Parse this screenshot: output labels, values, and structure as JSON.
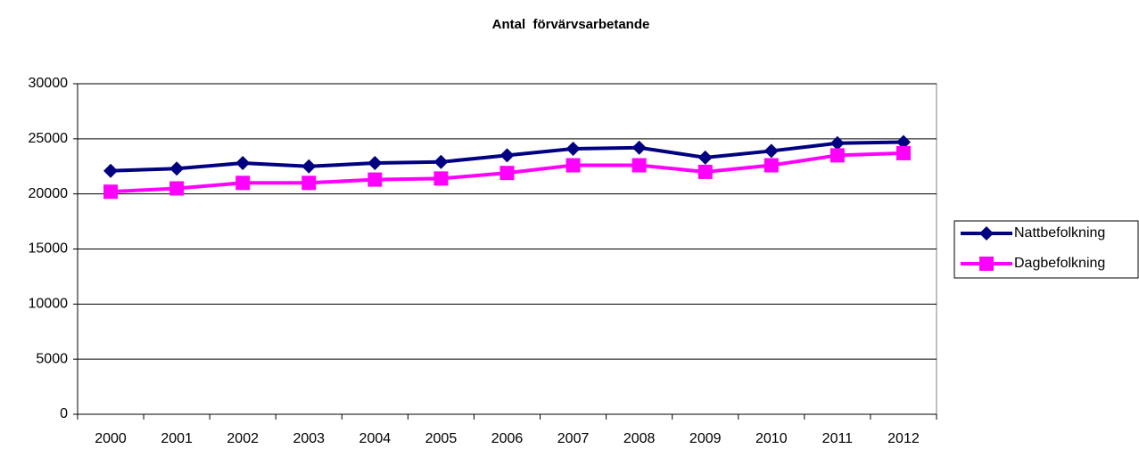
{
  "chart_data": {
    "type": "line",
    "title": "Antal  förvärvsarbetande",
    "categories": [
      "2000",
      "2001",
      "2002",
      "2003",
      "2004",
      "2005",
      "2006",
      "2007",
      "2008",
      "2009",
      "2010",
      "2011",
      "2012"
    ],
    "series": [
      {
        "name": "Nattbefolkning",
        "color": "#000080",
        "marker": "diamond",
        "values": [
          22100,
          22300,
          22800,
          22500,
          22800,
          22900,
          23500,
          24100,
          24200,
          23300,
          23900,
          24600,
          24700
        ]
      },
      {
        "name": "Dagbefolkning",
        "color": "#ff00ff",
        "marker": "square",
        "values": [
          20200,
          20500,
          21000,
          21000,
          21300,
          21400,
          21900,
          22600,
          22600,
          22000,
          22600,
          23500,
          23700
        ]
      }
    ],
    "ylim": [
      0,
      30000
    ],
    "yticks": [
      0,
      5000,
      10000,
      15000,
      20000,
      25000,
      30000
    ],
    "grid": true,
    "legend": "right"
  }
}
